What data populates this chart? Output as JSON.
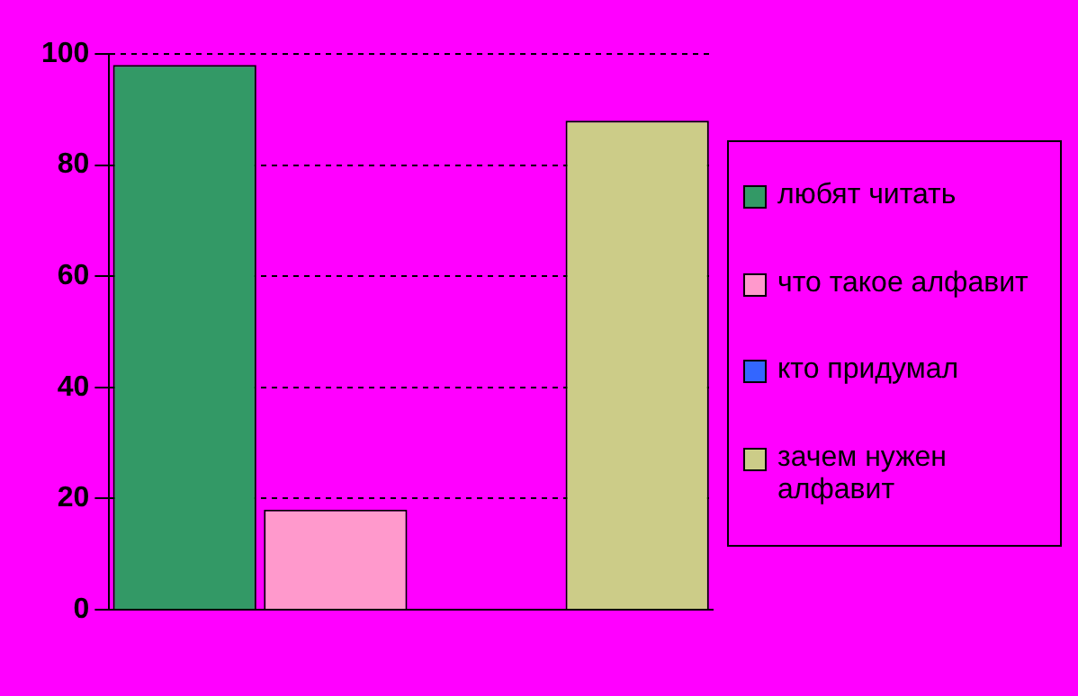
{
  "chart_data": {
    "type": "bar",
    "categories": [
      null
    ],
    "series": [
      {
        "name": "любят читать",
        "color": "#339966",
        "values": [
          98
        ]
      },
      {
        "name": "что такое алфавит",
        "color": "#ff99cc",
        "values": [
          18
        ]
      },
      {
        "name": "кто придумал",
        "color": "#3366ff",
        "values": [
          0
        ]
      },
      {
        "name": "зачем нужен алфавит",
        "color": "#cccc88",
        "values": [
          88
        ]
      }
    ],
    "ylim": [
      0,
      100
    ],
    "yticks": [
      0,
      20,
      40,
      60,
      80,
      100
    ],
    "grid": "y",
    "legend": "right"
  }
}
